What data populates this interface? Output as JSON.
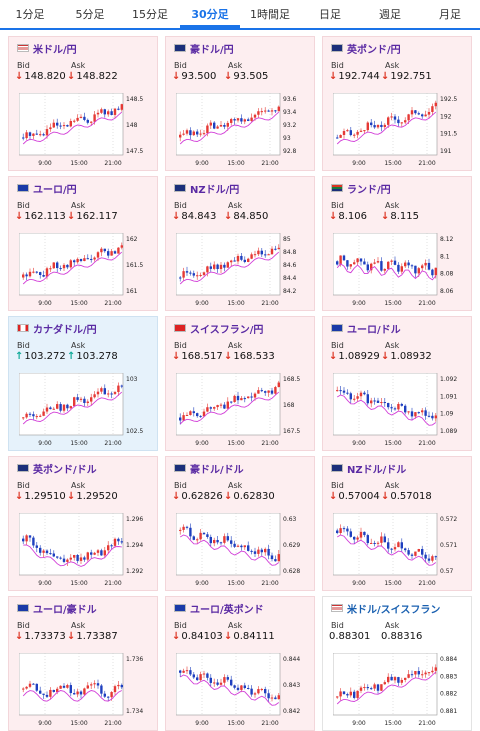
{
  "tabs": [
    {
      "label": "1分足",
      "active": false
    },
    {
      "label": "5分足",
      "active": false
    },
    {
      "label": "15分足",
      "active": false
    },
    {
      "label": "30分足",
      "active": true
    },
    {
      "label": "1時間足",
      "active": false
    },
    {
      "label": "日足",
      "active": false
    },
    {
      "label": "週足",
      "active": false
    },
    {
      "label": "月足",
      "active": false
    }
  ],
  "bid_label": "Bid",
  "ask_label": "Ask",
  "arrows": {
    "down": "↓",
    "up": "↑"
  },
  "colors": {
    "down_card": "#fdeef0",
    "up_card": "#e6f2fb",
    "bull": "#e53935",
    "bear": "#1e3fbf",
    "ma": "#d23fd8"
  },
  "pairs": [
    {
      "name": "米ドル/円",
      "flag": "us",
      "dir": "down",
      "bid": "148.820",
      "ask": "148.822",
      "yticks": [
        "148.5",
        "148",
        "147.5"
      ],
      "xticks": [
        "9:00",
        "15:00",
        "21:00"
      ],
      "trend": "up"
    },
    {
      "name": "豪ドル/円",
      "flag": "au",
      "dir": "down",
      "bid": "93.500",
      "ask": "93.505",
      "yticks": [
        "93.6",
        "93.4",
        "93.2",
        "93",
        "92.8"
      ],
      "xticks": [
        "9:00",
        "15:00",
        "21:00"
      ],
      "trend": "up"
    },
    {
      "name": "英ポンド/円",
      "flag": "gb",
      "dir": "down",
      "bid": "192.744",
      "ask": "192.751",
      "yticks": [
        "192.5",
        "192",
        "191.5",
        "191"
      ],
      "xticks": [
        "9:00",
        "15:00",
        "21:00"
      ],
      "trend": "up"
    },
    {
      "name": "ユーロ/円",
      "flag": "eu",
      "dir": "down",
      "bid": "162.113",
      "ask": "162.117",
      "yticks": [
        "162",
        "161.5",
        "161"
      ],
      "xticks": [
        "9:00",
        "15:00",
        "21:00"
      ],
      "trend": "up"
    },
    {
      "name": "NZドル/円",
      "flag": "nz",
      "dir": "down",
      "bid": "84.843",
      "ask": "84.850",
      "yticks": [
        "85",
        "84.8",
        "84.6",
        "84.4",
        "84.2"
      ],
      "xticks": [
        "9:00",
        "15:00",
        "21:00"
      ],
      "trend": "up"
    },
    {
      "name": "ランド/円",
      "flag": "za",
      "dir": "down",
      "bid": "8.106",
      "ask": "8.115",
      "yticks": [
        "8.12",
        "8.1",
        "8.08",
        "8.06"
      ],
      "xticks": [
        "9:00",
        "15:00",
        "21:00"
      ],
      "trend": "flatdown"
    },
    {
      "name": "カナダドル/円",
      "flag": "ca",
      "dir": "up",
      "bid": "103.272",
      "ask": "103.278",
      "yticks": [
        "103",
        "102.5"
      ],
      "xticks": [
        "9:00",
        "15:00",
        "21:00"
      ],
      "trend": "up"
    },
    {
      "name": "スイスフラン/円",
      "flag": "ch",
      "dir": "down",
      "bid": "168.517",
      "ask": "168.533",
      "yticks": [
        "168.5",
        "168",
        "167.5"
      ],
      "xticks": [
        "9:00",
        "15:00",
        "21:00"
      ],
      "trend": "up"
    },
    {
      "name": "ユーロ/ドル",
      "flag": "eu",
      "dir": "down",
      "bid": "1.08929",
      "ask": "1.08932",
      "yticks": [
        "1.092",
        "1.091",
        "1.09",
        "1.089"
      ],
      "xticks": [
        "9:00",
        "15:00",
        "21:00"
      ],
      "trend": "down"
    },
    {
      "name": "英ポンド/ドル",
      "flag": "gb",
      "dir": "down",
      "bid": "1.29510",
      "ask": "1.29520",
      "yticks": [
        "1.296",
        "1.294",
        "1.292"
      ],
      "xticks": [
        "9:00",
        "15:00",
        "21:00"
      ],
      "trend": "vdip"
    },
    {
      "name": "豪ドル/ドル",
      "flag": "au",
      "dir": "down",
      "bid": "0.62826",
      "ask": "0.62830",
      "yticks": [
        "0.63",
        "0.629",
        "0.628"
      ],
      "xticks": [
        "9:00",
        "15:00",
        "21:00"
      ],
      "trend": "down"
    },
    {
      "name": "NZドル/ドル",
      "flag": "nz",
      "dir": "down",
      "bid": "0.57004",
      "ask": "0.57018",
      "yticks": [
        "0.572",
        "0.571",
        "0.57"
      ],
      "xticks": [
        "9:00",
        "15:00",
        "21:00"
      ],
      "trend": "down"
    },
    {
      "name": "ユーロ/豪ドル",
      "flag": "eu",
      "dir": "down",
      "bid": "1.73373",
      "ask": "1.73387",
      "yticks": [
        "1.736",
        "1.734"
      ],
      "xticks": [
        "9:00",
        "15:00",
        "21:00"
      ],
      "trend": "flat"
    },
    {
      "name": "ユーロ/英ポンド",
      "flag": "eu",
      "dir": "down",
      "bid": "0.84103",
      "ask": "0.84111",
      "yticks": [
        "0.844",
        "0.843",
        "0.842"
      ],
      "xticks": [
        "9:00",
        "15:00",
        "21:00"
      ],
      "trend": "down"
    },
    {
      "name": "米ドル/スイスフラン",
      "flag": "us",
      "dir": "none",
      "bid": "0.88301",
      "ask": "0.88316",
      "yticks": [
        "0.884",
        "0.883",
        "0.882",
        "0.881"
      ],
      "xticks": [
        "9:00",
        "15:00",
        "21:00"
      ],
      "trend": "up"
    }
  ]
}
